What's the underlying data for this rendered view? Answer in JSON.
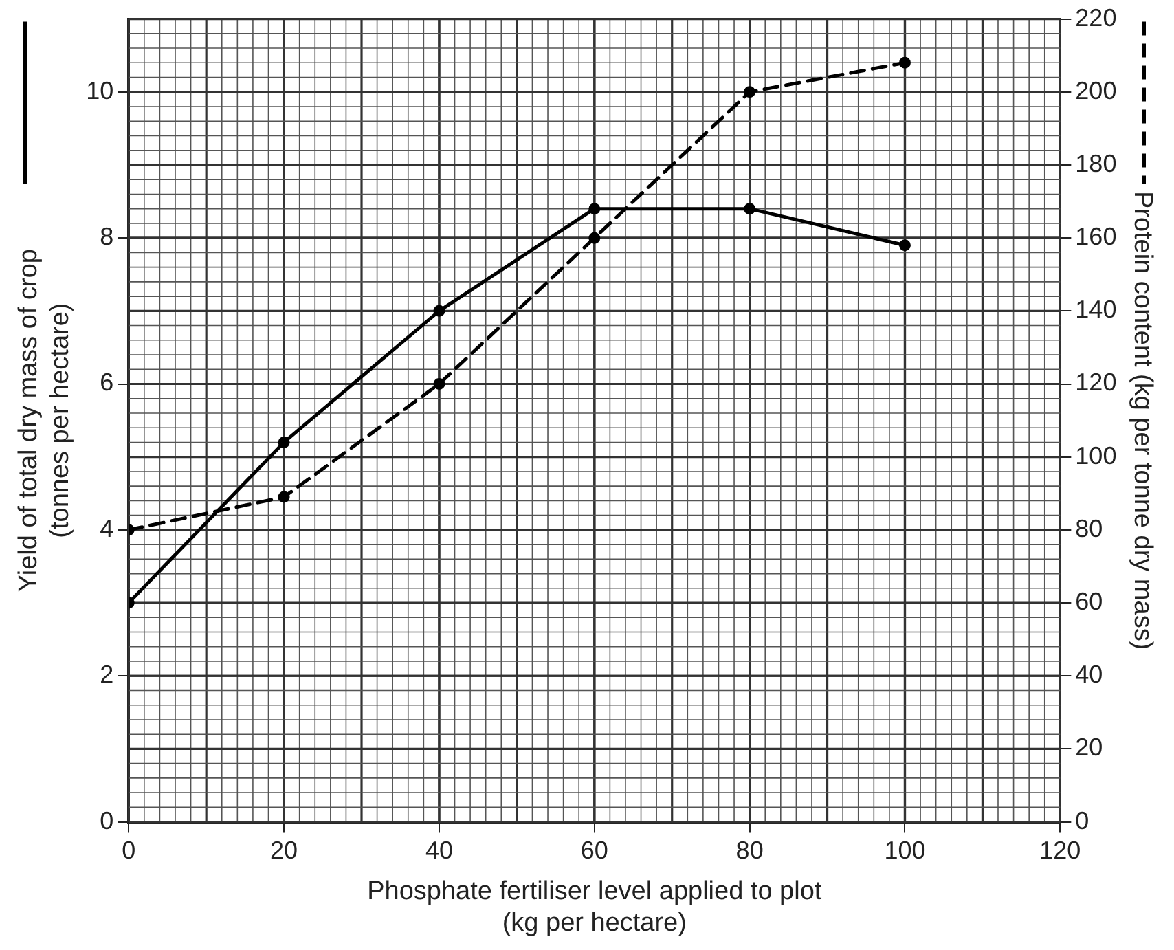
{
  "chart_data": {
    "type": "line",
    "xlabel": "Phosphate fertiliser level applied to plot\n(kg per hectare)",
    "ylabel": "Yield of total dry mass of crop\n(tonnes per hectare)",
    "y2label": "Protein content (kg per tonne dry mass)",
    "x": [
      0,
      20,
      40,
      60,
      80,
      100
    ],
    "series": [
      {
        "color": "#000000",
        "line_style": "solid",
        "values": [
          3,
          5.2,
          7,
          8.4,
          8.4,
          7.9
        ]
      },
      {
        "color": "#000000",
        "line_style": "dashed",
        "axis": "y2",
        "values": [
          80,
          89,
          120,
          160,
          200,
          208
        ]
      }
    ],
    "xlim": [
      0,
      120
    ],
    "xticks": [
      0,
      20,
      40,
      60,
      80,
      100,
      120
    ],
    "ylim": [
      0,
      11
    ],
    "yticks": [
      0,
      2,
      4,
      6,
      8,
      10
    ],
    "y2lim": [
      0,
      220
    ],
    "y2ticks": [
      0,
      20,
      40,
      60,
      80,
      100,
      120,
      140,
      160,
      180,
      200,
      220
    ],
    "grid": true,
    "marker": "circle"
  }
}
